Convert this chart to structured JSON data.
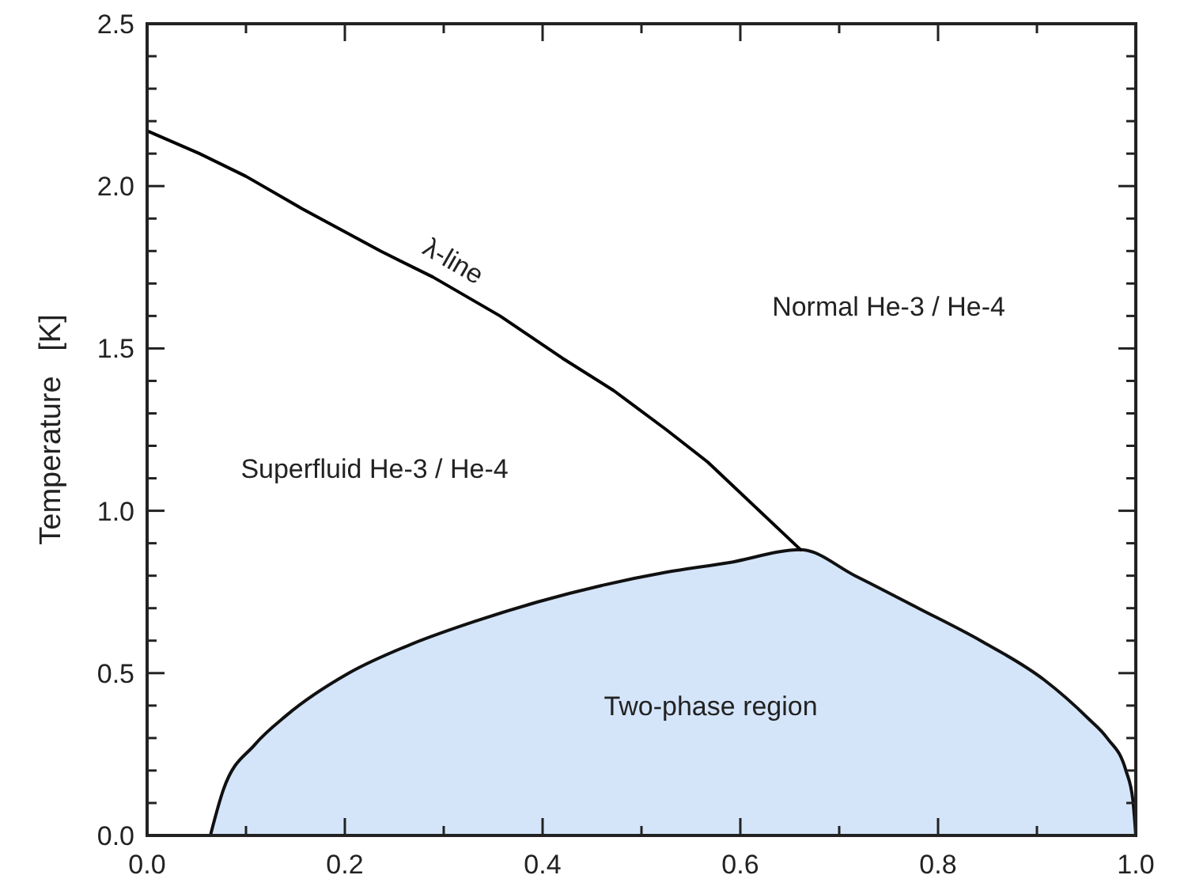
{
  "chart_data": {
    "type": "line",
    "ylabel": "Temperature   [K]",
    "xlim": [
      0,
      1
    ],
    "ylim": [
      0,
      2.5
    ],
    "xticks": [
      {
        "value": 0,
        "label": "0.0"
      },
      {
        "value": 0.1,
        "label": null
      },
      {
        "value": 0.2,
        "label": "0.2"
      },
      {
        "value": 0.3,
        "label": null
      },
      {
        "value": 0.4,
        "label": "0.4"
      },
      {
        "value": 0.5,
        "label": null
      },
      {
        "value": 0.6,
        "label": "0.6"
      },
      {
        "value": 0.7,
        "label": null
      },
      {
        "value": 0.8,
        "label": "0.8"
      },
      {
        "value": 0.9,
        "label": null
      },
      {
        "value": 1,
        "label": "1.0"
      }
    ],
    "yticks": [
      {
        "value": 0,
        "label": "0.0"
      },
      {
        "value": 0.1,
        "label": null
      },
      {
        "value": 0.2,
        "label": null
      },
      {
        "value": 0.3,
        "label": null
      },
      {
        "value": 0.4,
        "label": null
      },
      {
        "value": 0.5,
        "label": "0.5"
      },
      {
        "value": 0.6,
        "label": null
      },
      {
        "value": 0.7,
        "label": null
      },
      {
        "value": 0.8,
        "label": null
      },
      {
        "value": 0.9,
        "label": null
      },
      {
        "value": 1,
        "label": "1.0"
      },
      {
        "value": 1.1,
        "label": null
      },
      {
        "value": 1.2,
        "label": null
      },
      {
        "value": 1.3,
        "label": null
      },
      {
        "value": 1.4,
        "label": null
      },
      {
        "value": 1.5,
        "label": "1.5"
      },
      {
        "value": 1.6,
        "label": null
      },
      {
        "value": 1.7,
        "label": null
      },
      {
        "value": 1.8,
        "label": null
      },
      {
        "value": 1.9,
        "label": null
      },
      {
        "value": 2,
        "label": "2.0"
      },
      {
        "value": 2.1,
        "label": null
      },
      {
        "value": 2.2,
        "label": null
      },
      {
        "value": 2.3,
        "label": null
      },
      {
        "value": 2.4,
        "label": null
      },
      {
        "value": 2.5,
        "label": "2.5"
      }
    ],
    "grid": false,
    "marker": "none",
    "line_style": "solid",
    "series": [
      {
        "type": "area",
        "color": "#d4e5fa",
        "x": [
          0.064,
          0.077,
          0.109,
          0.141,
          0.204,
          0.268,
          0.332,
          0.396,
          0.46,
          0.524,
          0.588,
          0.661,
          0.716,
          0.78,
          0.843,
          0.907,
          0.952,
          0.971,
          0.99,
          0.997,
          1.0
        ],
        "values": [
          0,
          0.14,
          0.28,
          0.37,
          0.5,
          0.59,
          0.66,
          0.72,
          0.77,
          0.81,
          0.84,
          0.88,
          0.8,
          0.7,
          0.6,
          0.48,
          0.36,
          0.3,
          0.2,
          0.11,
          0
        ]
      },
      {
        "color": "#000000",
        "x": [
          0,
          0.053,
          0.1,
          0.157,
          0.236,
          0.289,
          0.357,
          0.42,
          0.472,
          0.525,
          0.567,
          0.661
        ],
        "values": [
          2.17,
          2.1,
          2.03,
          1.93,
          1.8,
          1.72,
          1.6,
          1.47,
          1.37,
          1.25,
          1.15,
          0.88
        ]
      }
    ],
    "annotations": [
      "λ-line",
      "Normal He-3 / He-4",
      "Superfluid He-3 / He-4",
      "Two-phase region"
    ]
  }
}
